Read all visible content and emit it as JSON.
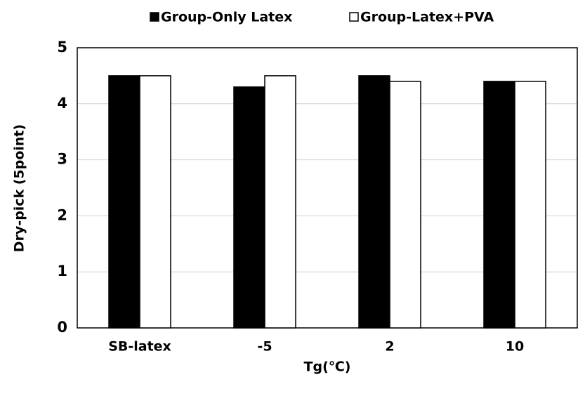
{
  "chart_data": {
    "type": "bar",
    "x_label": "Tg(℃)",
    "y_label": "Dry-pick (5point)",
    "categories": [
      "SB-latex",
      "-5",
      "2",
      "10"
    ],
    "series": [
      {
        "name": "Group-Only Latex",
        "color": "#000000",
        "values": [
          4.5,
          4.3,
          4.5,
          4.4
        ]
      },
      {
        "name": "Group-Latex+PVA",
        "color": "#ffffff",
        "values": [
          4.5,
          4.5,
          4.4,
          4.4
        ]
      }
    ],
    "ylim": [
      0,
      5
    ],
    "yticks": [
      0,
      1,
      2,
      3,
      4,
      5
    ],
    "grid": true,
    "legend": "top"
  }
}
